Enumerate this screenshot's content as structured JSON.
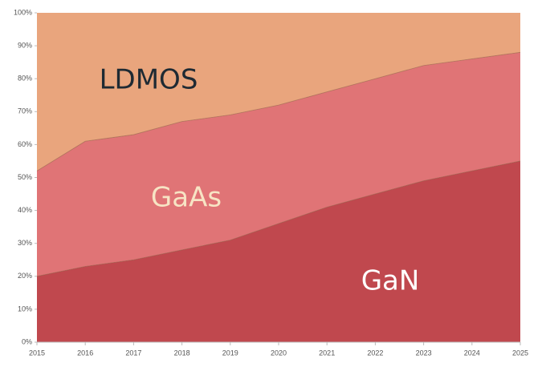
{
  "chart_data": {
    "type": "stacked_area",
    "x": [
      2015,
      2016,
      2017,
      2018,
      2019,
      2020,
      2021,
      2022,
      2023,
      2024,
      2025
    ],
    "series": [
      {
        "name": "GaN",
        "color": "#c0484e",
        "values": [
          20,
          23,
          25,
          28,
          31,
          36,
          41,
          45,
          49,
          52,
          55
        ]
      },
      {
        "name": "GaAs",
        "color": "#e07476",
        "values": [
          32,
          38,
          38,
          39,
          38,
          36,
          35,
          35,
          35,
          34,
          33
        ]
      },
      {
        "name": "LDMOS",
        "color": "#e9a57d",
        "values": [
          48,
          39,
          37,
          33,
          31,
          28,
          24,
          20,
          16,
          14,
          12
        ]
      }
    ],
    "xlim": [
      2015,
      2025
    ],
    "xticks": [
      2015,
      2016,
      2017,
      2018,
      2019,
      2020,
      2021,
      2022,
      2023,
      2024,
      2025
    ],
    "ylim": [
      0,
      100
    ],
    "yticks": [
      {
        "value": 0,
        "label": "0%"
      },
      {
        "value": 10,
        "label": "10%"
      },
      {
        "value": 20,
        "label": "20%"
      },
      {
        "value": 30,
        "label": "30%"
      },
      {
        "value": 40,
        "label": "40%"
      },
      {
        "value": 50,
        "label": "50%"
      },
      {
        "value": 60,
        "label": "60%"
      },
      {
        "value": 70,
        "label": "70%"
      },
      {
        "value": 80,
        "label": "80%"
      },
      {
        "value": 90,
        "label": "90%"
      },
      {
        "value": 100,
        "label": "100%"
      }
    ]
  }
}
